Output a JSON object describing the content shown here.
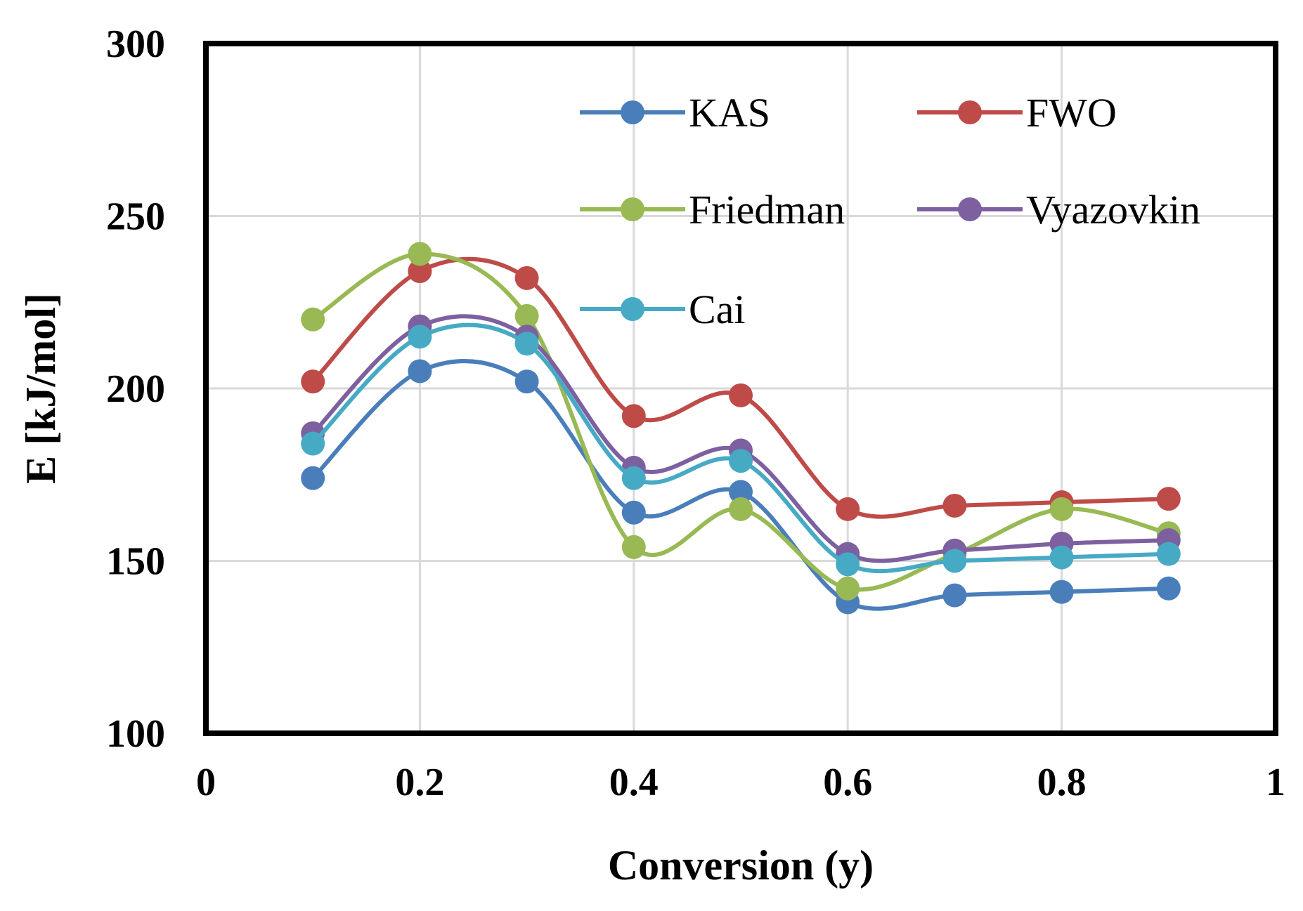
{
  "chart_data": {
    "type": "line",
    "title": "",
    "xlabel": "Conversion (y)",
    "ylabel": "E [kJ/mol]",
    "xlim": [
      0,
      1
    ],
    "ylim": [
      100,
      300
    ],
    "x_ticks": [
      "0",
      "0.2",
      "0.4",
      "0.6",
      "0.8",
      "1"
    ],
    "y_ticks": [
      "100",
      "150",
      "200",
      "250",
      "300"
    ],
    "grid": true,
    "legend_position": "top-right",
    "x": [
      0.1,
      0.2,
      0.3,
      0.4,
      0.5,
      0.6,
      0.7,
      0.8,
      0.9
    ],
    "series": [
      {
        "name": "KAS",
        "color": "#4a7ebb",
        "values": [
          174,
          205,
          202,
          164,
          170,
          138,
          140,
          141,
          142
        ]
      },
      {
        "name": "FWO",
        "color": "#be4b48",
        "values": [
          202,
          234,
          232,
          192,
          198,
          165,
          166,
          167,
          168
        ]
      },
      {
        "name": "Friedman",
        "color": "#98b954",
        "values": [
          220,
          239,
          221,
          154,
          165,
          142,
          152,
          165,
          158
        ]
      },
      {
        "name": "Vyazovkin",
        "color": "#7d60a0",
        "values": [
          187,
          218,
          215,
          177,
          182,
          152,
          153,
          155,
          156
        ]
      },
      {
        "name": "Cai",
        "color": "#46aac5",
        "values": [
          184,
          215,
          213,
          174,
          179,
          149,
          150,
          151,
          152
        ]
      }
    ]
  }
}
